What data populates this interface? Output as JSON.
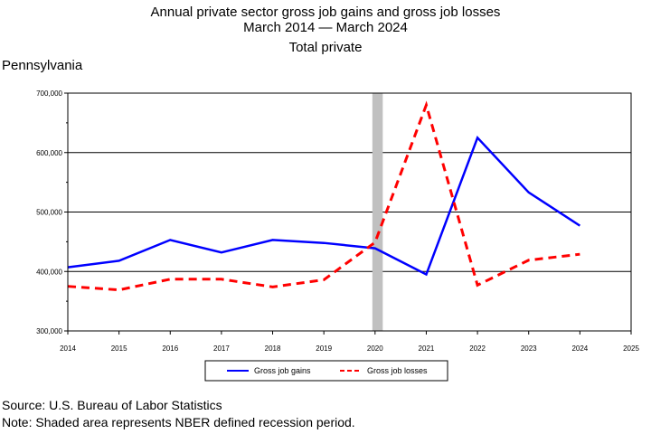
{
  "header": {
    "title_line1": "Annual private sector gross job gains and gross job losses",
    "title_line2": "March 2014 — March 2024",
    "title_line3": "Total private",
    "region": "Pennsylvania"
  },
  "footnotes": {
    "source": "Source: U.S. Bureau of Labor Statistics",
    "note": "Note: Shaded area represents NBER defined recession period."
  },
  "chart_data": {
    "type": "line",
    "x": [
      2014,
      2015,
      2016,
      2017,
      2018,
      2019,
      2020,
      2021,
      2022,
      2023,
      2024
    ],
    "xlim": [
      2014,
      2025
    ],
    "xticks": [
      "2014",
      "2015",
      "2016",
      "2017",
      "2018",
      "2019",
      "2020",
      "2021",
      "2022",
      "2023",
      "2024",
      "2025"
    ],
    "ylim": [
      300000,
      700000
    ],
    "yticks": [
      "300,000",
      "400,000",
      "500,000",
      "600,000",
      "700,000"
    ],
    "grid": "horizontal",
    "recession": [
      2020,
      2020.15
    ],
    "legend_position": "bottom",
    "series": [
      {
        "name": "Gross job gains",
        "color": "#0000ff",
        "dash": "solid",
        "values": [
          407000,
          418000,
          453000,
          432000,
          453000,
          448000,
          439000,
          395000,
          625000,
          533000,
          477000
        ]
      },
      {
        "name": "Gross job losses",
        "color": "#ff0000",
        "dash": "dashed",
        "values": [
          375000,
          369000,
          387000,
          387000,
          374000,
          386000,
          449000,
          680000,
          377000,
          419000,
          429000
        ]
      }
    ]
  }
}
